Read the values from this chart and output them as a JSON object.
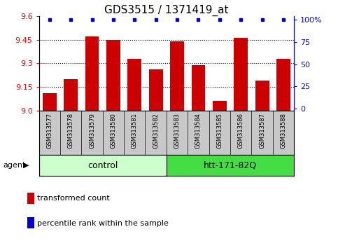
{
  "title": "GDS3515 / 1371419_at",
  "samples": [
    "GSM313577",
    "GSM313578",
    "GSM313579",
    "GSM313580",
    "GSM313581",
    "GSM313582",
    "GSM313583",
    "GSM313584",
    "GSM313585",
    "GSM313586",
    "GSM313587",
    "GSM313588"
  ],
  "values": [
    9.11,
    9.2,
    9.47,
    9.45,
    9.33,
    9.26,
    9.44,
    9.29,
    9.06,
    9.46,
    9.19,
    9.33
  ],
  "percentile_ranks": [
    100,
    100,
    100,
    100,
    100,
    100,
    100,
    100,
    100,
    100,
    100,
    100
  ],
  "bar_color": "#cc0000",
  "dot_color": "#0000cc",
  "ylim": [
    9.0,
    9.6
  ],
  "yticks_left": [
    9.0,
    9.15,
    9.3,
    9.45,
    9.6
  ],
  "yticks_right": [
    0,
    25,
    50,
    75,
    100
  ],
  "groups": [
    {
      "label": "control",
      "start": 0,
      "end": 6,
      "color": "#ccffcc"
    },
    {
      "label": "htt-171-82Q",
      "start": 6,
      "end": 12,
      "color": "#44dd44"
    }
  ],
  "agent_label": "agent",
  "legend_items": [
    {
      "color": "#cc0000",
      "label": "transformed count"
    },
    {
      "color": "#0000cc",
      "label": "percentile rank within the sample"
    }
  ],
  "tick_area_color": "#c8c8c8",
  "title_fontsize": 11,
  "tick_fontsize": 8,
  "sample_fontsize": 6,
  "group_fontsize": 9,
  "legend_fontsize": 8
}
